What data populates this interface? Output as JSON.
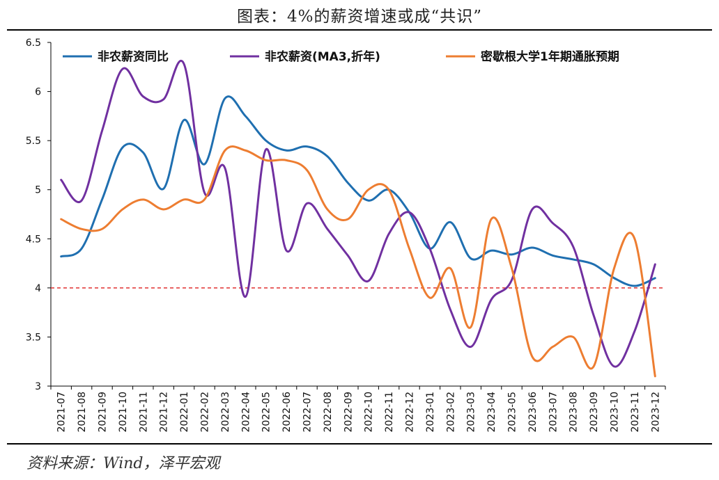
{
  "title": "图表：4%的薪资增速或成“共识”",
  "source": "资料来源：Wind，泽平宏观",
  "chart_data": {
    "type": "line",
    "title": "图表：4%的薪资增速或成“共识”",
    "xlabel": "",
    "ylabel": "",
    "ylim": [
      3,
      6.5
    ],
    "yticks": [
      "3",
      "3.5",
      "4",
      "4.5",
      "5",
      "5.5",
      "6",
      "6.5"
    ],
    "grid": false,
    "legend_position": "top",
    "x": [
      "2021-07",
      "2021-08",
      "2021-09",
      "2021-10",
      "2021-11",
      "2021-12",
      "2022-01",
      "2022-02",
      "2022-03",
      "2022-04",
      "2022-05",
      "2022-06",
      "2022-07",
      "2022-08",
      "2022-09",
      "2022-10",
      "2022-11",
      "2022-12",
      "2023-01",
      "2023-02",
      "2023-03",
      "2023-04",
      "2023-05",
      "2023-06",
      "2023-07",
      "2023-08",
      "2023-09",
      "2023-10",
      "2023-11",
      "2023-12"
    ],
    "series": [
      {
        "name": "非农薪资同比",
        "color": "#1f6fb0",
        "values": [
          4.32,
          4.4,
          4.9,
          5.43,
          5.38,
          5.01,
          5.71,
          5.26,
          5.93,
          5.75,
          5.5,
          5.4,
          5.44,
          5.34,
          5.07,
          4.89,
          5.0,
          4.77,
          4.4,
          4.67,
          4.3,
          4.38,
          4.34,
          4.41,
          4.33,
          4.29,
          4.24,
          4.1,
          4.02,
          4.1
        ]
      },
      {
        "name": "非农薪资(MA3,折年)",
        "color": "#7030a0",
        "values": [
          5.1,
          4.89,
          5.6,
          6.23,
          5.95,
          5.92,
          6.28,
          4.97,
          5.22,
          3.91,
          5.41,
          4.38,
          4.86,
          4.6,
          4.33,
          4.07,
          4.55,
          4.77,
          4.4,
          3.78,
          3.4,
          3.88,
          4.08,
          4.8,
          4.66,
          4.42,
          3.72,
          3.2,
          3.56,
          4.24
        ]
      },
      {
        "name": "密歇根大学1年期通胀预期",
        "color": "#ed7d31",
        "values": [
          4.7,
          4.6,
          4.6,
          4.8,
          4.9,
          4.8,
          4.9,
          4.9,
          5.4,
          5.4,
          5.3,
          5.3,
          5.2,
          4.8,
          4.7,
          5.0,
          5.0,
          4.4,
          3.9,
          4.2,
          3.6,
          4.7,
          4.2,
          3.3,
          3.4,
          3.5,
          3.2,
          4.2,
          4.5,
          3.1
        ]
      }
    ],
    "reference_line": {
      "value": 4.0,
      "color": "#e03030",
      "style": "dashed"
    }
  }
}
